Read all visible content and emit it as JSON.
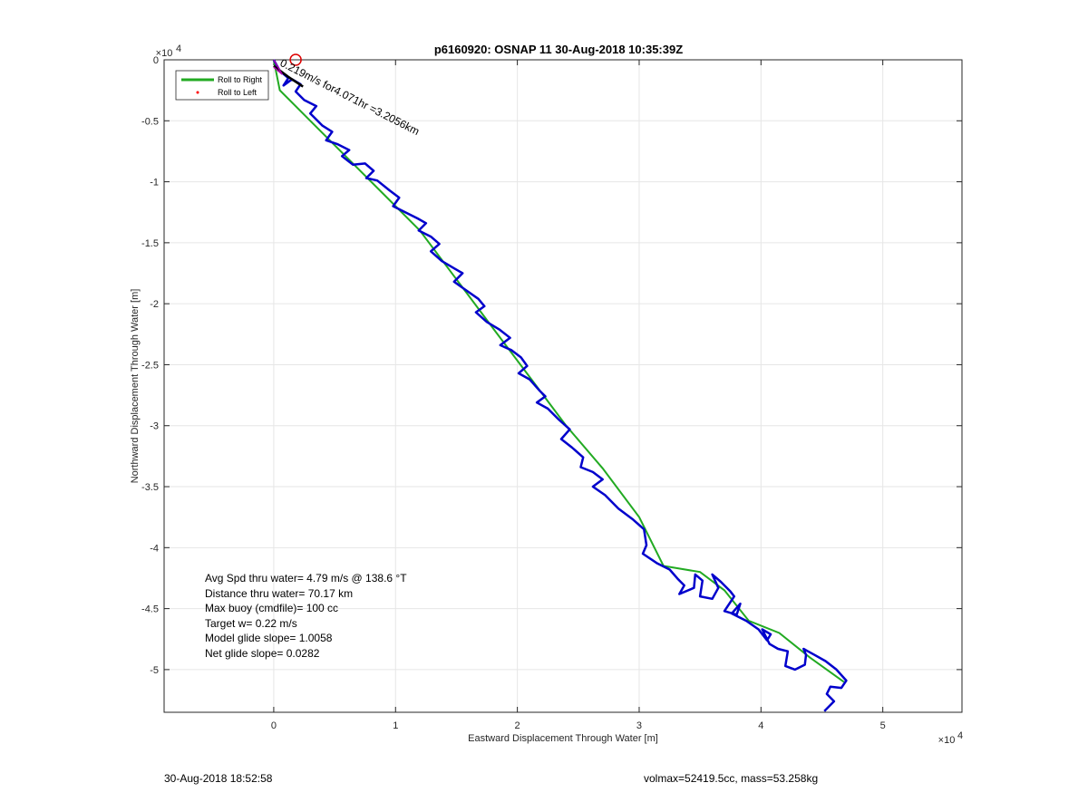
{
  "chart_data": {
    "type": "line",
    "title": "p6160920: OSNAP 11 30-Aug-2018 10:35:39Z",
    "xlabel": "Eastward Displacement Through Water [m]",
    "ylabel": "Northward Displacement Through Water [m]",
    "x_exponent": "×10^4",
    "y_exponent": "×10^4",
    "x_exponent_base": "×10",
    "x_exponent_power": "4",
    "y_exponent_base": "×10",
    "y_exponent_power": "4",
    "xlim": [
      -9000,
      56500
    ],
    "ylim": [
      -53500,
      0
    ],
    "xticks": [
      0,
      10000,
      20000,
      30000,
      40000,
      50000
    ],
    "xtick_labels": [
      "0",
      "1",
      "2",
      "3",
      "4",
      "5"
    ],
    "yticks": [
      0,
      -5000,
      -10000,
      -15000,
      -20000,
      -25000,
      -30000,
      -35000,
      -40000,
      -45000,
      -50000
    ],
    "ytick_labels": [
      "0",
      "-0.5",
      "-1",
      "-1.5",
      "-2",
      "-2.5",
      "-3",
      "-3.5",
      "-4",
      "-4.5",
      "-5"
    ],
    "grid": true,
    "legend_placement": "top-left",
    "series": [
      {
        "name": "Roll to Right",
        "color": "#22aa22",
        "x": [
          0,
          500,
          3000,
          6000,
          9000,
          12000,
          15000,
          18000,
          21000,
          24000,
          27000,
          30000,
          32000,
          35000,
          37000,
          39000,
          41500,
          44000,
          46800
        ],
        "y": [
          0,
          -2500,
          -5000,
          -8000,
          -11000,
          -14000,
          -18000,
          -22000,
          -26000,
          -30000,
          -33500,
          -37500,
          -41500,
          -42000,
          -43500,
          -46000,
          -47000,
          -49000,
          -51000
        ]
      },
      {
        "name": "Roll to Left",
        "color": "#ff0000",
        "x": [],
        "y": []
      },
      {
        "name": "",
        "color": "#0000cc",
        "x": [
          0,
          500,
          1200,
          800,
          1500,
          2200,
          1800,
          2500,
          3500,
          3000,
          4000,
          4800,
          4300,
          5200,
          6200,
          5600,
          6500,
          7500,
          8200,
          7600,
          8500,
          9500,
          10300,
          9800,
          10800,
          11800,
          12500,
          11900,
          12900,
          13600,
          12900,
          13800,
          14800,
          15500,
          14800,
          15800,
          16800,
          17300,
          16600,
          17500,
          18500,
          19400,
          18600,
          19500,
          20300,
          20800,
          20100,
          21000,
          21800,
          22300,
          21600,
          22500,
          23400,
          24300,
          23600,
          24500,
          25400,
          25200,
          26200,
          27000,
          26200,
          27200,
          28300,
          29500,
          30400,
          30600,
          30300,
          31500,
          32500,
          33200,
          33700,
          33300,
          34500,
          34600,
          35200,
          35000,
          36000,
          36500,
          36000,
          36700,
          37500,
          37800,
          37000,
          38000,
          38300,
          37600,
          38800,
          39800,
          40500,
          40800,
          40100,
          40700,
          41400,
          42200,
          42000,
          42800,
          43600,
          43700,
          43500,
          44400,
          45300,
          46200,
          47000,
          46600,
          45700,
          45400,
          46000,
          45200
        ],
        "y": [
          0,
          -900,
          -1500,
          -2100,
          -1600,
          -2000,
          -2600,
          -3300,
          -3800,
          -4400,
          -5400,
          -5900,
          -6600,
          -6900,
          -7400,
          -7900,
          -8600,
          -8500,
          -9100,
          -9700,
          -9900,
          -10700,
          -11300,
          -12000,
          -12500,
          -13000,
          -13400,
          -14000,
          -14500,
          -15100,
          -15700,
          -16500,
          -17100,
          -17500,
          -18200,
          -18900,
          -19600,
          -20200,
          -20700,
          -21500,
          -22100,
          -22800,
          -23400,
          -23800,
          -24400,
          -25100,
          -25700,
          -26200,
          -27100,
          -27600,
          -28100,
          -28600,
          -29500,
          -30300,
          -31100,
          -31800,
          -32600,
          -33400,
          -33800,
          -34400,
          -35000,
          -35700,
          -36800,
          -37700,
          -38500,
          -39800,
          -40500,
          -41300,
          -41800,
          -42600,
          -43100,
          -43800,
          -43300,
          -42200,
          -42700,
          -44000,
          -44200,
          -43300,
          -42200,
          -42800,
          -43600,
          -44000,
          -45200,
          -45500,
          -44600,
          -45400,
          -46000,
          -46700,
          -47600,
          -47100,
          -46700,
          -47900,
          -48300,
          -48500,
          -49700,
          -50000,
          -49600,
          -48800,
          -48300,
          -48800,
          -49300,
          -50000,
          -50900,
          -51500,
          -51400,
          -52000,
          -52600,
          -53400
        ]
      }
    ],
    "annotations": {
      "marker_label": "Red circle marker",
      "current_text": "0.219m/s for4.071hr =3.2056km",
      "stats": [
        "Avg Spd thru water=  4.79 m/s @ 138.6 °T",
        "Distance thru water= 70.17 km",
        "Max buoy (cmdfile)= 100 cc",
        "Target w= 0.22 m/s",
        "Model glide slope= 1.0058",
        "Net glide slope= 0.0282"
      ]
    },
    "current_vector": {
      "x": [
        0,
        1200,
        2400
      ],
      "y": [
        -500,
        -1400,
        -2200
      ]
    },
    "current_marker": {
      "x": 1800,
      "y": 0
    }
  },
  "footer": {
    "left": "30-Aug-2018 18:52:58",
    "right": "volmax=52419.5cc, mass=53.258kg"
  },
  "colors": {
    "track": "#0000cc",
    "model": "#22aa22",
    "marker": "#dd0000",
    "grid": "#e6e6e6"
  }
}
